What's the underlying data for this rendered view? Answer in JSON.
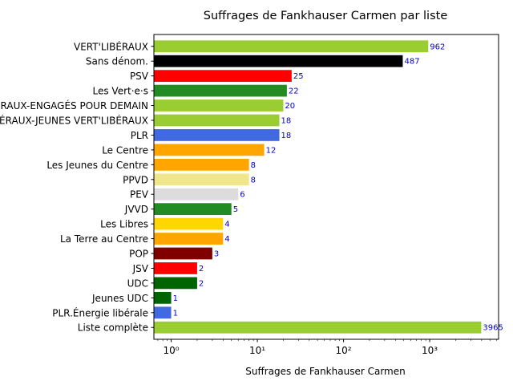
{
  "chart_data": {
    "type": "bar",
    "orientation": "horizontal",
    "title": "Suffrages de Fankhauser Carmen par liste",
    "xlabel": "Suffrages de Fankhauser Carmen",
    "ylabel": "",
    "x_scale": "log",
    "xlim": [
      0.63,
      6300
    ],
    "x_ticks": [
      {
        "value": 1,
        "label": "10⁰"
      },
      {
        "value": 10,
        "label": "10¹"
      },
      {
        "value": 100,
        "label": "10²"
      },
      {
        "value": 1000,
        "label": "10³"
      }
    ],
    "label_color": "#0000cc",
    "grid": false,
    "categories": [
      "VERT'LIBÉRAUX",
      "Sans dénom.",
      "PSV",
      "Les Vert·e·s",
      "VERT'LIBÉRAUX-ENGAGÉS POUR DEMAIN",
      "VERT'LIBÉRAUX-JEUNES VERT'LIBÉRAUX",
      "PLR",
      "Le Centre",
      "Les Jeunes du Centre",
      "PPVD",
      "PEV",
      "JVVD",
      "Les Libres",
      "La Terre au Centre",
      "POP",
      "JSV",
      "UDC",
      "Jeunes UDC",
      "PLR.Énergie libérale",
      "Liste complète"
    ],
    "values": [
      962,
      487,
      25,
      22,
      20,
      18,
      18,
      12,
      8,
      8,
      6,
      5,
      4,
      4,
      3,
      2,
      2,
      1,
      1,
      3965
    ],
    "colors": [
      "#9acd32",
      "#000000",
      "#ff0000",
      "#228b22",
      "#9acd32",
      "#9acd32",
      "#4169e1",
      "#ffa500",
      "#ffa500",
      "#f0e68c",
      "#dcdcdc",
      "#228b22",
      "#ffd700",
      "#ffa500",
      "#800000",
      "#ff0000",
      "#006400",
      "#006400",
      "#4169e1",
      "#9acd32"
    ]
  }
}
